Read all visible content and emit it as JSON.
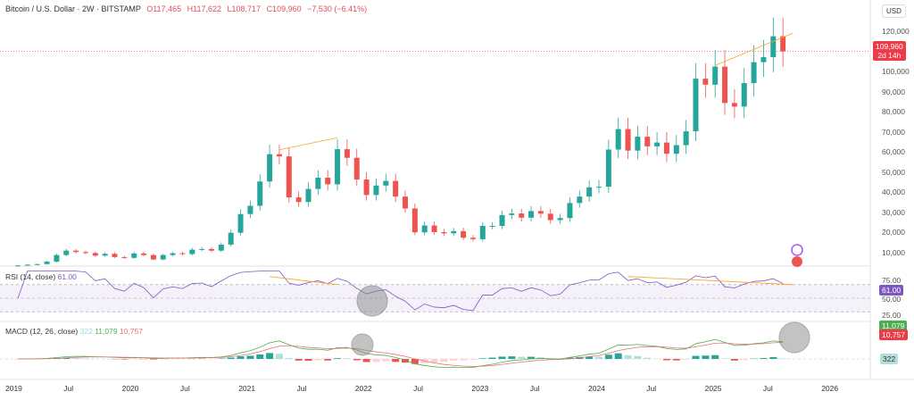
{
  "header": {
    "symbol": "Bitcoin / U.S. Dollar · 2W · BITSTAMP",
    "open": "O117,465",
    "high": "H117,622",
    "low": "L108,717",
    "close": "C109,960",
    "change": "−7,530 (−6.41%)"
  },
  "price_axis": {
    "currency": "USD",
    "ticks": [
      "120,000",
      "100,000",
      "90,000",
      "80,000",
      "70,000",
      "60,000",
      "50,000",
      "40,000",
      "30,000",
      "20,000",
      "10,000"
    ],
    "last_price": "109,960",
    "countdown": "2d 14h"
  },
  "rsi": {
    "label": "RSI (14, close)",
    "value": "61.00",
    "ticks": [
      "75.00",
      "50.00",
      "25.00"
    ]
  },
  "macd": {
    "label": "MACD (12, 26, close)",
    "hist": "322",
    "macd": "11,079",
    "signal": "10,757"
  },
  "colors": {
    "up": "#26a69a",
    "down": "#ef5350",
    "rsi": "#7e57c2",
    "macd": "#4caf50",
    "signal": "#e57373",
    "trend": "#f5a623"
  },
  "chart_data": {
    "type": "candlestick",
    "title": "Bitcoin / U.S. Dollar · 2W · BITSTAMP",
    "x_ticks": [
      "2019",
      "Jul",
      "2020",
      "Jul",
      "2021",
      "Jul",
      "2022",
      "Jul",
      "2023",
      "Jul",
      "2024",
      "Jul",
      "2025",
      "Jul",
      "2026"
    ],
    "ylim": [
      0,
      125000
    ],
    "start": "2019-01",
    "monthly_close_k": [
      3.4,
      3.8,
      4.1,
      5.3,
      8.6,
      10.8,
      10.1,
      9.6,
      8.3,
      9.2,
      7.6,
      7.2,
      9.4,
      8.6,
      6.4,
      8.6,
      9.5,
      9.1,
      11.3,
      11.6,
      10.8,
      13.8,
      19.7,
      29.0,
      33.1,
      45.2,
      58.8,
      57.7,
      37.3,
      35.0,
      41.5,
      47.1,
      43.8,
      61.3,
      57.0,
      46.2,
      38.5,
      43.2,
      45.5,
      37.7,
      31.8,
      19.9,
      23.3,
      20.0,
      19.4,
      20.5,
      17.2,
      16.5,
      23.1,
      23.1,
      28.5,
      29.3,
      27.2,
      30.5,
      29.2,
      26.0,
      27.0,
      34.5,
      37.7,
      42.3,
      42.6,
      61.1,
      71.3,
      60.6,
      67.5,
      62.7,
      64.6,
      59.0,
      63.3,
      70.2,
      96.4,
      93.4,
      102.4,
      84.3,
      82.5,
      94.2,
      104.6,
      107.1,
      117.5,
      110.0
    ]
  }
}
